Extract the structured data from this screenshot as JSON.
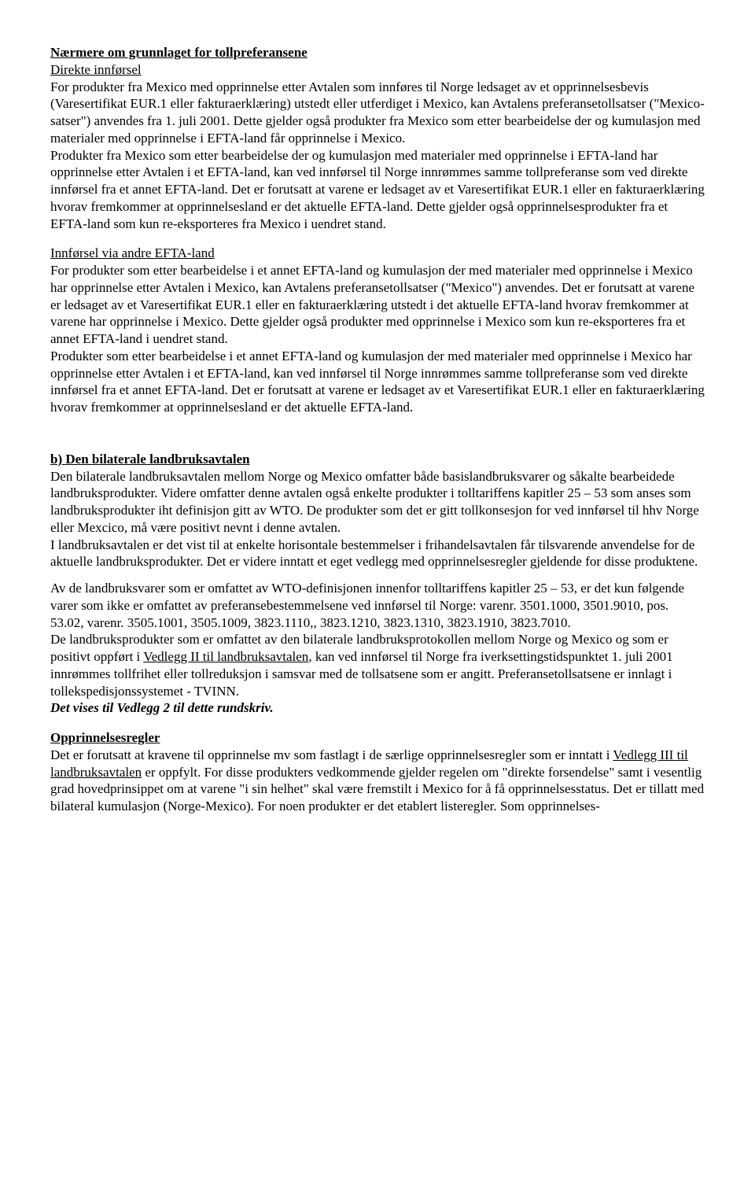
{
  "s1": {
    "h": "Nærmere om grunnlaget for tollpreferansene",
    "sub": "Direkte innførsel",
    "p1a": "For produkter fra Mexico med opprinnelse etter Avtalen som innføres til Norge ledsaget av et opprinnelsesbevis (Varesertifikat EUR.1 eller fakturaerklæring) utstedt eller utferdiget i Mexico, kan Avtalens preferansetollsatser (\"Mexico-satser\") anvendes fra 1. juli 2001. Dette gjelder også produkter fra Mexico som etter bearbeidelse der og kumulasjon med materialer med opprinnelse i EFTA-land får opprinnelse i Mexico.",
    "p1b": "Produkter fra Mexico som etter bearbeidelse der og kumulasjon med materialer med opprinnelse i EFTA-land har opprinnelse etter Avtalen i et EFTA-land, kan ved innførsel til Norge innrømmes samme tollpreferanse som ved direkte innførsel fra et annet EFTA-land. Det er forutsatt at varene er ledsaget av et Varesertifikat EUR.1 eller en fakturaerklæring hvorav fremkommer at opprinnelsesland er det aktuelle EFTA-land. Dette gjelder også opprinnelsesprodukter fra et EFTA-land som kun re-eksporteres fra Mexico i uendret stand."
  },
  "s2": {
    "sub": "Innførsel via andre EFTA-land",
    "p1": "For produkter som etter bearbeidelse i et annet EFTA-land og kumulasjon der med materialer med opprinnelse i Mexico har opprinnelse etter Avtalen i Mexico, kan Avtalens preferansetollsatser (\"Mexico\") anvendes. Det er forutsatt at varene er ledsaget av et Varesertifikat EUR.1 eller en fakturaerklæring utstedt i det aktuelle EFTA-land hvorav fremkommer at varene har opprinnelse i Mexico. Dette gjelder også produkter med opprinnelse i Mexico som kun re-eksporteres fra et annet EFTA-land i uendret stand.",
    "p2": "Produkter som etter bearbeidelse i et annet EFTA-land og kumulasjon der med materialer med opprinnelse i Mexico har opprinnelse etter Avtalen i et EFTA-land, kan ved innførsel til Norge innrømmes samme tollpreferanse som ved direkte innførsel fra et annet EFTA-land. Det er forutsatt at varene er ledsaget av et Varesertifikat EUR.1 eller en fakturaerklæring hvorav fremkommer at opprinnelsesland er det aktuelle EFTA-land."
  },
  "s3": {
    "h": "b) Den bilaterale landbruksavtalen",
    "p1": "Den bilaterale landbruksavtalen mellom Norge og Mexico omfatter både basislandbruksvarer og såkalte bearbeidede landbruksprodukter. Videre omfatter denne avtalen også enkelte produkter i tolltariffens kapitler 25 – 53 som anses som landbruksprodukter iht definisjon gitt av WTO. De produkter som det er gitt tollkonsesjon for ved innførsel til hhv Norge eller Mexcico, må være positivt nevnt i denne avtalen.",
    "p2": "I landbruksavtalen er det vist til at enkelte horisontale bestemmelser i frihandelsavtalen får tilsvarende anvendelse for de aktuelle landbruksprodukter. Det er videre inntatt et eget vedlegg med opprinnelsesregler gjeldende for disse produktene.",
    "p3": "Av de landbruksvarer som er omfattet av WTO-definisjonen innenfor tolltariffens kapitler 25 – 53, er det kun følgende varer som ikke er omfattet av preferansebestemmelsene ved innførsel til Norge: varenr. 3501.1000, 3501.9010, pos. 53.02, varenr. 3505.1001, 3505.1009, 3823.1110,, 3823.1210, 3823.1310, 3823.1910, 3823.7010.",
    "p4a": "De landbruksprodukter som er omfattet av den bilaterale landbruksprotokollen mellom Norge og Mexico og som er positivt oppført i ",
    "p4link": "Vedlegg II til landbruksavtalen",
    "p4b": ", kan ved innførsel til Norge fra iverksettingstidspunktet 1. juli 2001 innrømmes tollfrihet eller tollreduksjon i samsvar med de tollsatsene som er angitt. Preferansetollsatsene er innlagt i tollekspedisjonssystemet - TVINN.",
    "p4c": "Det vises til Vedlegg 2 til dette rundskriv."
  },
  "s4": {
    "h": "Opprinnelsesregler",
    "p1a": "Det er forutsatt at kravene til opprinnelse mv som fastlagt i de særlige opprinnelsesregler som er inntatt i ",
    "p1link": "Vedlegg III til landbruksavtalen",
    "p1b": " er oppfylt. For disse produkters vedkommende gjelder regelen om \"direkte forsendelse\" samt i vesentlig grad hovedprinsippet om at varene \"i sin helhet\" skal være fremstilt i Mexico for å få opprinnelsesstatus. Det er tillatt med bilateral kumulasjon (Norge-Mexico). For noen produkter er det etablert listeregler. Som opprinnelses-"
  }
}
